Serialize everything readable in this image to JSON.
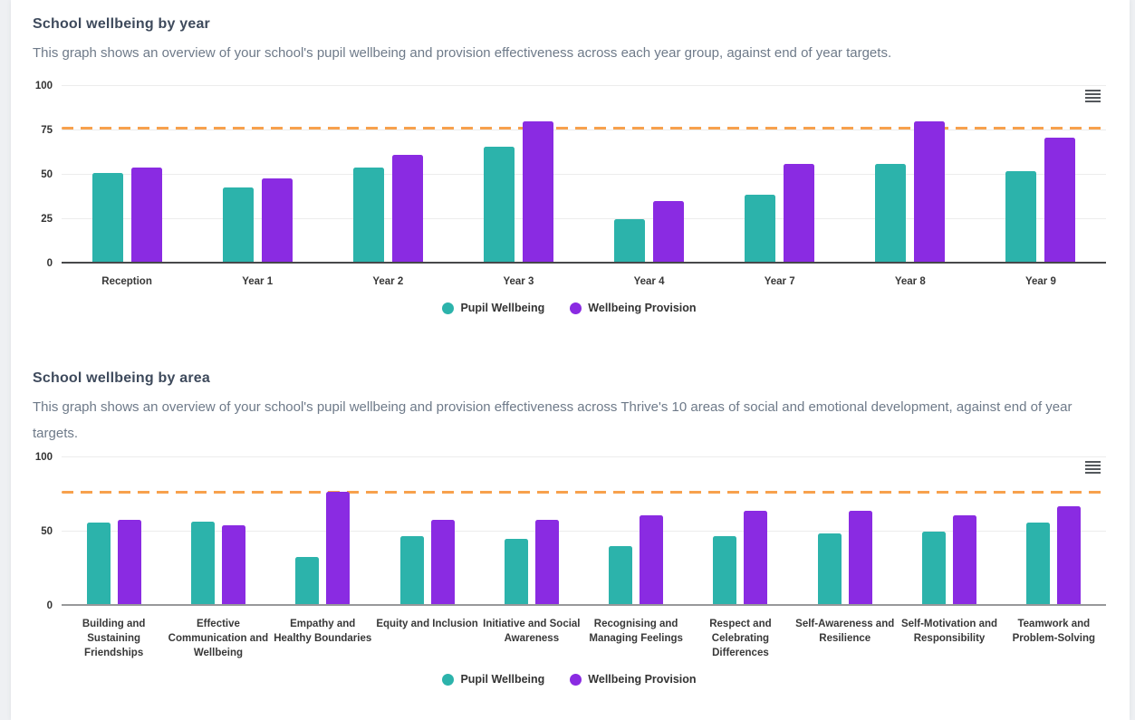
{
  "page": {
    "background_color": "#eef0f3",
    "card_color": "#ffffff"
  },
  "colors": {
    "pupil_wellbeing": "#2cb3ab",
    "wellbeing_provision": "#8a2be2",
    "target_line": "#f7a14d",
    "title_text": "#3e4a5c",
    "description_text": "#6e7a89",
    "axis_text": "#333333"
  },
  "sections": [
    {
      "title": "School wellbeing by year",
      "description": "This graph shows an overview of your school's pupil wellbeing and provision effectiveness across each year group, against end of year targets."
    },
    {
      "title": "School wellbeing by area",
      "description": "This graph shows an overview of your school's pupil wellbeing and provision effectiveness across Thrive's 10 areas of social and emotional development, against end of year targets."
    }
  ],
  "chart_data": [
    {
      "type": "bar",
      "title": "School wellbeing by year",
      "categories": [
        "Reception",
        "Year 1",
        "Year 2",
        "Year 3",
        "Year 4",
        "Year 7",
        "Year 8",
        "Year 9"
      ],
      "series": [
        {
          "name": "Pupil Wellbeing",
          "color": "#2cb3ab",
          "values": [
            51,
            43,
            54,
            66,
            25,
            39,
            56,
            52
          ]
        },
        {
          "name": "Wellbeing Provision",
          "color": "#8a2be2",
          "values": [
            54,
            48,
            61,
            80,
            35,
            56,
            80,
            71
          ]
        }
      ],
      "target_line": {
        "value": 76,
        "color": "#f7a14d",
        "style": "dashed"
      },
      "ylim": [
        0,
        100
      ],
      "yticks": [
        0,
        25,
        50,
        75,
        100
      ],
      "grid": true,
      "legend_position": "bottom",
      "context_menu_icon": "hamburger-icon"
    },
    {
      "type": "bar",
      "title": "School wellbeing by area",
      "categories": [
        "Building and Sustaining Friendships",
        "Effective Communication and Wellbeing",
        "Empathy and Healthy Boundaries",
        "Equity and Inclusion",
        "Initiative and Social Awareness",
        "Recognising and Managing Feelings",
        "Respect and Celebrating Differences",
        "Self-Awareness and Resilience",
        "Self-Motivation and Responsibility",
        "Teamwork and Problem-Solving"
      ],
      "series": [
        {
          "name": "Pupil Wellbeing",
          "color": "#2cb3ab",
          "values": [
            56,
            57,
            33,
            47,
            45,
            40,
            47,
            49,
            50,
            56
          ]
        },
        {
          "name": "Wellbeing Provision",
          "color": "#8a2be2",
          "values": [
            58,
            54,
            77,
            58,
            58,
            61,
            64,
            64,
            61,
            67
          ]
        }
      ],
      "target_line": {
        "value": 76,
        "color": "#f7a14d",
        "style": "dashed"
      },
      "ylim": [
        0,
        100
      ],
      "yticks": [
        0,
        50,
        100
      ],
      "grid": true,
      "legend_position": "bottom",
      "context_menu_icon": "hamburger-icon"
    }
  ]
}
